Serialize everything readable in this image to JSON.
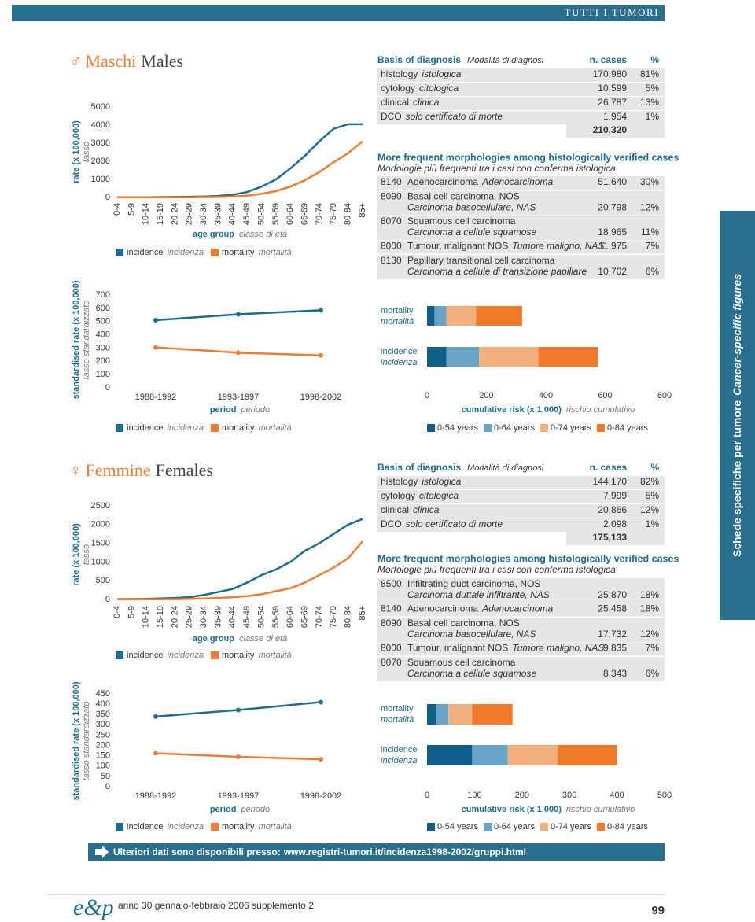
{
  "header": {
    "section": "TUTTI I TUMORI"
  },
  "side_tab": {
    "it": "Schede specifiche per tumore",
    "en": "Cancer-specific figures"
  },
  "sections": [
    {
      "symbol": "♂",
      "title_it": "Maschi",
      "title_en": "Males",
      "basis": {
        "title": "Basis of diagnosis",
        "title_it": "Modalità di diagnosi",
        "col_n": "n. cases",
        "col_pct": "%",
        "rows": [
          [
            "histology",
            "istologica",
            "170,980",
            "81%"
          ],
          [
            "cytology",
            "citologica",
            "10,599",
            "5%"
          ],
          [
            "clinical",
            "clinica",
            "26,787",
            "13%"
          ],
          [
            "DCO",
            "solo certificato di morte",
            "1,954",
            "1%"
          ]
        ],
        "total": "210,320"
      },
      "morphologies": {
        "title": "More frequent morphologies among histologically verified cases",
        "title_it": "Morfologie più frequenti tra i casi con conferma istologica",
        "rows": [
          [
            "8140",
            "Adenocarcinoma",
            "Adenocarcinoma",
            "51,640",
            "30%"
          ],
          [
            "8090",
            "Basal cell carcinoma, NOS",
            "Carcinoma basocellulare, NAS",
            "20,798",
            "12%"
          ],
          [
            "8070",
            "Squamous cell carcinoma",
            "Carcinoma a cellule squamose",
            "18,965",
            "11%"
          ],
          [
            "8000",
            "Tumour, malignant NOS",
            "Tumore maligno, NAS",
            "11,975",
            "7%"
          ],
          [
            "8130",
            "Papillary transitional cell carcinoma",
            "Carcinoma a cellule di transizione papillare",
            "10,702",
            "6%"
          ]
        ]
      }
    },
    {
      "symbol": "♀",
      "title_it": "Femmine",
      "title_en": "Females",
      "basis": {
        "title": "Basis of diagnosis",
        "title_it": "Modalità di diagnosi",
        "col_n": "n. cases",
        "col_pct": "%",
        "rows": [
          [
            "histology",
            "istologica",
            "144,170",
            "82%"
          ],
          [
            "cytology",
            "citologica",
            "7,999",
            "5%"
          ],
          [
            "clinical",
            "clinica",
            "20,866",
            "12%"
          ],
          [
            "DCO",
            "solo certificato di morte",
            "2,098",
            "1%"
          ]
        ],
        "total": "175,133"
      },
      "morphologies": {
        "title": "More frequent morphologies among histologically verified cases",
        "title_it": "Morfologie più frequenti tra i casi con conferma istologica",
        "rows": [
          [
            "8500",
            "Infiltrating duct carcinoma, NOS",
            "Carcinoma duttale infiltrante, NAS",
            "25,870",
            "18%"
          ],
          [
            "8140",
            "Adenocarcinoma",
            "Adenocarcinoma",
            "25,458",
            "18%"
          ],
          [
            "8090",
            "Basal cell carcinoma, NOS",
            "Carcinoma basocellulare, NAS",
            "17,732",
            "12%"
          ],
          [
            "8000",
            "Tumour, malignant NOS",
            "Tumore maligno, NAS",
            "9,835",
            "7%"
          ],
          [
            "8070",
            "Squamous cell carcinoma",
            "Carcinoma a cellule squamose",
            "8,343",
            "6%"
          ]
        ]
      }
    }
  ],
  "chart_data": [
    {
      "type": "line",
      "ylabel": "rate (x 100,000)",
      "ylabel_it": "tasso",
      "xlabel": "age group",
      "xlabel_it": "classe di età",
      "categories": [
        "0-4",
        "5-9",
        "10-14",
        "15-19",
        "20-24",
        "25-29",
        "30-34",
        "35-39",
        "40-44",
        "45-49",
        "50-54",
        "55-59",
        "60-64",
        "65-69",
        "70-74",
        "75-79",
        "80-84",
        "85+"
      ],
      "series": [
        {
          "name": "incidence",
          "name_it": "incidenza",
          "color": "#1b6d91",
          "values": [
            15,
            10,
            12,
            20,
            30,
            40,
            50,
            80,
            150,
            300,
            600,
            1000,
            1600,
            2300,
            3100,
            3800,
            4050,
            4050
          ]
        },
        {
          "name": "mortality",
          "name_it": "mortalità",
          "color": "#ef7d31",
          "values": [
            5,
            3,
            4,
            8,
            10,
            12,
            15,
            25,
            50,
            100,
            200,
            350,
            600,
            950,
            1400,
            1950,
            2450,
            3100
          ]
        }
      ],
      "ylim": [
        0,
        5000
      ],
      "yticks": [
        0,
        1000,
        2000,
        3000,
        4000,
        5000
      ],
      "markers": false
    },
    {
      "type": "line",
      "ylabel": "standardised rate (x 100,000)",
      "ylabel_it": "tasso standardizzato",
      "xlabel": "period",
      "xlabel_it": "periodo",
      "categories": [
        "1988-1992",
        "1993-1997",
        "1998-2002"
      ],
      "series": [
        {
          "name": "incidence",
          "name_it": "incidenza",
          "color": "#1b6d91",
          "values": [
            510,
            555,
            585
          ]
        },
        {
          "name": "mortality",
          "name_it": "mortalità",
          "color": "#ef7d31",
          "values": [
            305,
            265,
            245
          ]
        }
      ],
      "ylim": [
        0,
        700
      ],
      "yticks": [
        0,
        100,
        200,
        300,
        400,
        500,
        600,
        700
      ],
      "markers": true
    },
    {
      "type": "bar",
      "horizontal": true,
      "stacked": true,
      "xlabel": "cumulative risk (x 1,000)",
      "xlabel_it": "rischio cumulativo",
      "categories": [
        "mortality",
        "incidence"
      ],
      "categories_it": [
        "mortalità",
        "incidenza"
      ],
      "series": [
        {
          "name": "0-54 years",
          "color": "#0f5f8a",
          "values": [
            25,
            65
          ]
        },
        {
          "name": "0-64 years",
          "color": "#6aa3c8",
          "values": [
            40,
            110
          ]
        },
        {
          "name": "0-74 years",
          "color": "#f2b07e",
          "values": [
            100,
            200
          ]
        },
        {
          "name": "0-84 years",
          "color": "#f07a2a",
          "values": [
            155,
            200
          ]
        }
      ],
      "xlim": [
        0,
        800
      ],
      "xticks": [
        0,
        200,
        400,
        600,
        800
      ]
    },
    {
      "type": "line",
      "ylabel": "rate (x 100,000)",
      "ylabel_it": "tasso",
      "xlabel": "age group",
      "xlabel_it": "classe di età",
      "categories": [
        "0-4",
        "5-9",
        "10-14",
        "15-19",
        "20-24",
        "25-29",
        "30-34",
        "35-39",
        "40-44",
        "45-49",
        "50-54",
        "55-59",
        "60-64",
        "65-69",
        "70-74",
        "75-79",
        "80-84",
        "85+"
      ],
      "series": [
        {
          "name": "incidence",
          "name_it": "incidenza",
          "color": "#1b6d91",
          "values": [
            10,
            10,
            15,
            25,
            40,
            60,
            120,
            200,
            280,
            450,
            650,
            800,
            1000,
            1300,
            1500,
            1750,
            2000,
            2150
          ]
        },
        {
          "name": "mortality",
          "name_it": "mortalità",
          "color": "#ef7d31",
          "values": [
            4,
            3,
            4,
            5,
            8,
            15,
            25,
            40,
            60,
            90,
            140,
            220,
            300,
            450,
            650,
            850,
            1100,
            1550
          ]
        }
      ],
      "ylim": [
        0,
        2500
      ],
      "yticks": [
        0,
        500,
        1000,
        1500,
        2000,
        2500
      ],
      "markers": false
    },
    {
      "type": "line",
      "ylabel": "standardised rate (x 100,000)",
      "ylabel_it": "tasso standardizzato",
      "xlabel": "period",
      "xlabel_it": "periodo",
      "categories": [
        "1988-1992",
        "1993-1997",
        "1998-2002"
      ],
      "series": [
        {
          "name": "incidence",
          "name_it": "incidenza",
          "color": "#1b6d91",
          "values": [
            340,
            372,
            410
          ]
        },
        {
          "name": "mortality",
          "name_it": "mortalità",
          "color": "#ef7d31",
          "values": [
            162,
            145,
            133
          ]
        }
      ],
      "ylim": [
        0,
        450
      ],
      "yticks": [
        0,
        50,
        100,
        150,
        200,
        250,
        300,
        350,
        400,
        450
      ],
      "markers": true
    },
    {
      "type": "bar",
      "horizontal": true,
      "stacked": true,
      "xlabel": "cumulative risk (x 1,000)",
      "xlabel_it": "rischio cumulativo",
      "categories": [
        "mortality",
        "incidence"
      ],
      "categories_it": [
        "mortalità",
        "incidenza"
      ],
      "series": [
        {
          "name": "0-54 years",
          "color": "#0f5f8a",
          "values": [
            20,
            95
          ]
        },
        {
          "name": "0-64 years",
          "color": "#6aa3c8",
          "values": [
            25,
            75
          ]
        },
        {
          "name": "0-74 years",
          "color": "#f2b07e",
          "values": [
            50,
            105
          ]
        },
        {
          "name": "0-84 years",
          "color": "#f07a2a",
          "values": [
            85,
            125
          ]
        }
      ],
      "xlim": [
        0,
        500
      ],
      "xticks": [
        0,
        100,
        200,
        300,
        400,
        500
      ]
    }
  ],
  "footer": {
    "text": "Ulteriori dati sono disponibili presso:",
    "url": "www.registri-tumori.it/incidenza1998-2002/gruppi.html"
  },
  "colophon": {
    "logo": "e&p",
    "issue": "anno 30 gennaio-febbraio 2006 supplemento 2",
    "page": "99"
  }
}
